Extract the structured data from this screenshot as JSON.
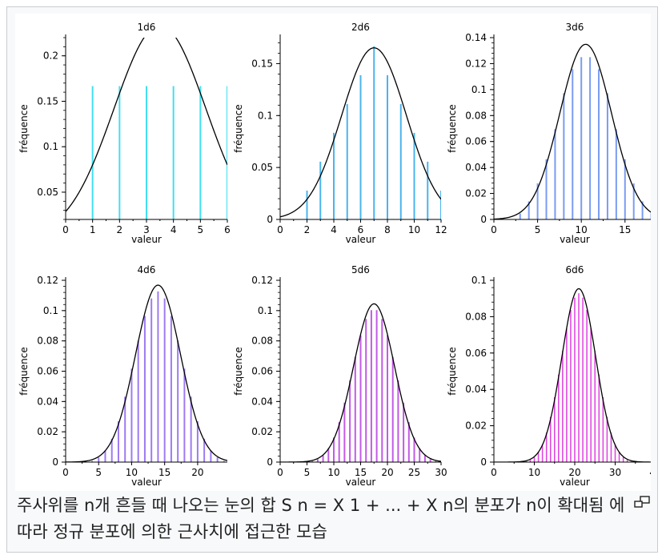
{
  "caption": "주사위를 n개 흔들 때 나오는 눈의 합 S n = X 1 + ... + X n의 분포가 n이 확대됨 에 따라 정규 분포에 의한 근사치에 접근한 모습",
  "icons": {
    "enlarge": "magnify-icon"
  },
  "colors": {
    "curve": "#000000",
    "axis": "#000000"
  },
  "chart_data": [
    {
      "type": "bar",
      "title": "1d6",
      "xlabel": "valeur",
      "ylabel": "fréquence",
      "n": 1,
      "color": "#40e0f0",
      "xlim": [
        0,
        6
      ],
      "ylim": [
        0.02,
        0.22
      ],
      "xticks": [
        0,
        1,
        2,
        3,
        4,
        5,
        6
      ],
      "yticks": [
        0.05,
        0.1,
        0.15,
        0.2
      ],
      "xtick_labels": [
        "0",
        "1",
        "2",
        "3",
        "4",
        "5",
        "6"
      ],
      "ytick_labels": [
        "0.05",
        "0.1",
        "0.15",
        "0.2"
      ],
      "normal_curve": {
        "mean": 3.5,
        "variance": 2.9167
      }
    },
    {
      "type": "bar",
      "title": "2d6",
      "xlabel": "valeur",
      "ylabel": "fréquence",
      "n": 2,
      "color": "#4ab4ee",
      "xlim": [
        0,
        12
      ],
      "ylim": [
        0,
        0.175
      ],
      "xticks": [
        0,
        2,
        4,
        6,
        8,
        10,
        12
      ],
      "yticks": [
        0,
        0.05,
        0.1,
        0.15
      ],
      "xtick_labels": [
        "0",
        "2",
        "4",
        "6",
        "8",
        "10",
        "12"
      ],
      "ytick_labels": [
        "0",
        "0.05",
        "0.1",
        "0.15"
      ],
      "normal_curve": {
        "mean": 7,
        "variance": 5.8333
      }
    },
    {
      "type": "bar",
      "title": "3d6",
      "xlabel": "valeur",
      "ylabel": "fréquence",
      "n": 3,
      "color": "#7a9cf2",
      "xlim": [
        0,
        18.5
      ],
      "ylim": [
        0,
        0.14
      ],
      "xticks": [
        0,
        5,
        10,
        15
      ],
      "yticks": [
        0,
        0.02,
        0.04,
        0.06,
        0.08,
        0.1,
        0.12,
        0.14
      ],
      "xtick_labels": [
        "0",
        "5",
        "10",
        "15"
      ],
      "ytick_labels": [
        "0",
        "0.02",
        "0.04",
        "0.06",
        "0.08",
        "0.1",
        "0.12",
        "0.14"
      ],
      "normal_curve": {
        "mean": 10.5,
        "variance": 8.75
      }
    },
    {
      "type": "bar",
      "title": "4d6",
      "xlabel": "valeur",
      "ylabel": "fréquence",
      "n": 4,
      "color": "#9e7af2",
      "xlim": [
        0,
        24.5
      ],
      "ylim": [
        0,
        0.12
      ],
      "xticks": [
        0,
        5,
        10,
        15,
        20
      ],
      "yticks": [
        0,
        0.02,
        0.04,
        0.06,
        0.08,
        0.1,
        0.12
      ],
      "xtick_labels": [
        "0",
        "5",
        "10",
        "15",
        "20"
      ],
      "ytick_labels": [
        "0",
        "0.02",
        "0.04",
        "0.06",
        "0.08",
        "0.1",
        "0.12"
      ],
      "normal_curve": {
        "mean": 14,
        "variance": 11.6667
      }
    },
    {
      "type": "bar",
      "title": "5d6",
      "xlabel": "valeur",
      "ylabel": "fréquence",
      "n": 5,
      "color": "#c25ae6",
      "xlim": [
        0,
        30
      ],
      "ylim": [
        0,
        0.12
      ],
      "xticks": [
        0,
        5,
        10,
        15,
        20,
        25,
        30
      ],
      "yticks": [
        0,
        0.02,
        0.04,
        0.06,
        0.08,
        0.1,
        0.12
      ],
      "xtick_labels": [
        "0",
        "5",
        "10",
        "15",
        "20",
        "25",
        "30"
      ],
      "ytick_labels": [
        "0",
        "0.02",
        "0.04",
        "0.06",
        "0.08",
        "0.1",
        "0.12"
      ],
      "normal_curve": {
        "mean": 17.5,
        "variance": 14.5833
      }
    },
    {
      "type": "bar",
      "title": "6d6",
      "xlabel": "valeur",
      "ylabel": "fréquence",
      "n": 6,
      "color": "#e040e0",
      "xlim": [
        0,
        40
      ],
      "ylim": [
        0,
        0.1
      ],
      "xticks": [
        0,
        10,
        20,
        30,
        40
      ],
      "yticks": [
        0,
        0.02,
        0.04,
        0.06,
        0.08,
        0.1
      ],
      "xtick_labels": [
        "0",
        "10",
        "20",
        "30",
        "40"
      ],
      "ytick_labels": [
        "0",
        "0.02",
        "0.04",
        "0.06",
        "0.08",
        "0.1"
      ],
      "normal_curve": {
        "mean": 21,
        "variance": 17.5
      }
    }
  ]
}
